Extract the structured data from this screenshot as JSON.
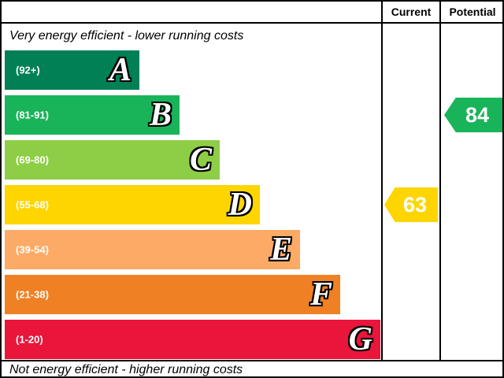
{
  "header": {
    "current_label": "Current",
    "potential_label": "Potential"
  },
  "captions": {
    "top": "Very energy efficient - lower running costs",
    "bottom": "Not energy efficient - higher running costs"
  },
  "chart_data": {
    "type": "bar",
    "title": "",
    "orientation": "horizontal",
    "bands": [
      {
        "letter": "A",
        "range_label": "(92+)",
        "color": "#008054"
      },
      {
        "letter": "B",
        "range_label": "(81-91)",
        "color": "#19b459"
      },
      {
        "letter": "C",
        "range_label": "(69-80)",
        "color": "#8dce46"
      },
      {
        "letter": "D",
        "range_label": "(55-68)",
        "color": "#ffd500"
      },
      {
        "letter": "E",
        "range_label": "(39-54)",
        "color": "#fcaa65"
      },
      {
        "letter": "F",
        "range_label": "(21-38)",
        "color": "#ef8023"
      },
      {
        "letter": "G",
        "range_label": "(1-20)",
        "color": "#e9153b"
      }
    ],
    "markers": {
      "current": {
        "value": 63,
        "band": "D",
        "color": "#ffd500"
      },
      "potential": {
        "value": 84,
        "band": "B",
        "color": "#19b459"
      }
    }
  }
}
